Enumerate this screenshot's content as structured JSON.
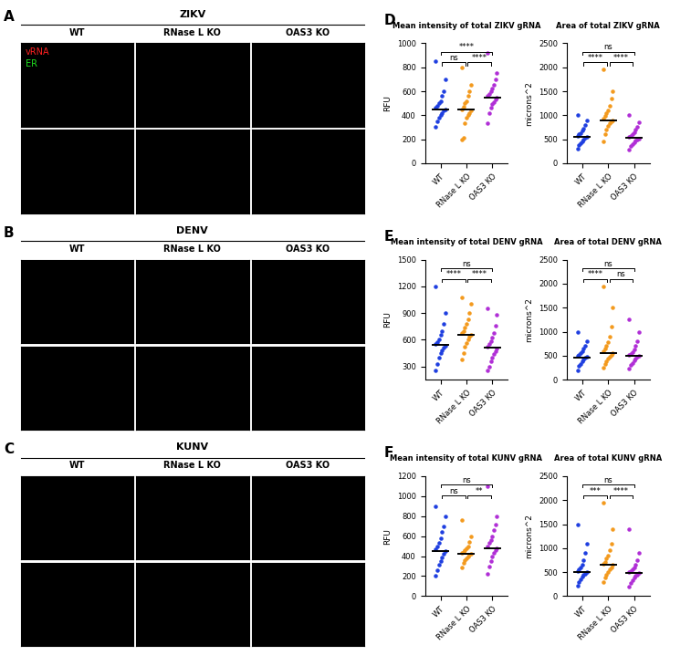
{
  "image_panels": [
    {
      "letter": "A",
      "title": "ZIKV",
      "columns": [
        "WT",
        "RNase L KO",
        "OAS3 KO"
      ],
      "channels": [
        {
          "name": "vRNA",
          "color": "#ff2020"
        },
        {
          "name": "ER",
          "color": "#20e020"
        }
      ]
    },
    {
      "letter": "B",
      "title": "DENV",
      "columns": [
        "WT",
        "RNase L KO",
        "OAS3 KO"
      ]
    },
    {
      "letter": "C",
      "title": "KUNV",
      "columns": [
        "WT",
        "RNase L KO",
        "OAS3 KO"
      ]
    }
  ],
  "chart_data": [
    {
      "type": "scatter",
      "letter": "D",
      "title": "Mean intensity of total ZIKV gRNA",
      "y_label": "RFU",
      "categories": [
        "WT",
        "RNase L KO",
        "OAS3 KO"
      ],
      "colors": [
        "#1f3fe0",
        "#f39a1e",
        "#b02fd6"
      ],
      "values": [
        [
          300,
          350,
          380,
          400,
          420,
          440,
          450,
          460,
          480,
          500,
          520,
          560,
          600,
          700,
          850
        ],
        [
          200,
          210,
          330,
          380,
          400,
          420,
          440,
          450,
          470,
          500,
          520,
          560,
          600,
          650,
          800
        ],
        [
          330,
          420,
          460,
          490,
          510,
          530,
          550,
          560,
          580,
          600,
          620,
          650,
          700,
          750,
          920
        ]
      ],
      "means": [
        450,
        450,
        550
      ],
      "ylim": [
        0,
        1000
      ],
      "yticks": [
        0,
        200,
        400,
        600,
        800,
        1000
      ],
      "comparisons": [
        {
          "pair": [
            0,
            1
          ],
          "label": "ns"
        },
        {
          "pair": [
            1,
            2
          ],
          "label": "****"
        },
        {
          "pair": [
            0,
            2
          ],
          "label": "****"
        }
      ]
    },
    {
      "type": "scatter",
      "title": "Area of total ZIKV gRNA",
      "y_label": "microns^2",
      "categories": [
        "WT",
        "RNase L KO",
        "OAS3 KO"
      ],
      "colors": [
        "#1f3fe0",
        "#f39a1e",
        "#b02fd6"
      ],
      "values": [
        [
          300,
          380,
          420,
          460,
          500,
          530,
          550,
          570,
          600,
          630,
          680,
          720,
          800,
          900,
          1000
        ],
        [
          450,
          600,
          700,
          780,
          830,
          870,
          900,
          930,
          980,
          1050,
          1100,
          1200,
          1350,
          1500,
          1950
        ],
        [
          280,
          350,
          400,
          440,
          480,
          500,
          520,
          540,
          570,
          600,
          640,
          700,
          760,
          850,
          1000
        ]
      ],
      "means": [
        550,
        900,
        530
      ],
      "ylim": [
        0,
        2500
      ],
      "yticks": [
        0,
        500,
        1000,
        1500,
        2000,
        2500
      ],
      "comparisons": [
        {
          "pair": [
            0,
            1
          ],
          "label": "****"
        },
        {
          "pair": [
            1,
            2
          ],
          "label": "****"
        },
        {
          "pair": [
            0,
            2
          ],
          "label": "ns"
        }
      ]
    },
    {
      "type": "scatter",
      "letter": "E",
      "title": "Mean intensity of total DENV gRNA",
      "y_label": "RFU",
      "categories": [
        "WT",
        "RNase L KO",
        "OAS3 KO"
      ],
      "colors": [
        "#1f3fe0",
        "#f39a1e",
        "#b02fd6"
      ],
      "values": [
        [
          250,
          330,
          400,
          450,
          480,
          510,
          530,
          550,
          570,
          600,
          650,
          700,
          780,
          900,
          1200
        ],
        [
          380,
          450,
          520,
          560,
          600,
          630,
          650,
          670,
          700,
          740,
          780,
          830,
          900,
          1000,
          1080
        ],
        [
          250,
          300,
          360,
          400,
          440,
          470,
          500,
          520,
          550,
          580,
          620,
          680,
          760,
          880,
          950
        ]
      ],
      "means": [
        540,
        650,
        510
      ],
      "ylim": [
        150,
        1500
      ],
      "yticks": [
        300,
        600,
        900,
        1200,
        1500
      ],
      "comparisons": [
        {
          "pair": [
            0,
            1
          ],
          "label": "****"
        },
        {
          "pair": [
            1,
            2
          ],
          "label": "****"
        },
        {
          "pair": [
            0,
            2
          ],
          "label": "ns"
        }
      ]
    },
    {
      "type": "scatter",
      "title": "Area of total DENV gRNA",
      "y_label": "microns^2",
      "categories": [
        "WT",
        "RNase L KO",
        "OAS3 KO"
      ],
      "colors": [
        "#1f3fe0",
        "#f39a1e",
        "#b02fd6"
      ],
      "values": [
        [
          200,
          280,
          330,
          380,
          420,
          450,
          470,
          490,
          520,
          560,
          600,
          650,
          700,
          800,
          1000
        ],
        [
          250,
          320,
          380,
          430,
          480,
          520,
          560,
          600,
          650,
          700,
          780,
          900,
          1100,
          1500,
          1950
        ],
        [
          230,
          300,
          350,
          400,
          440,
          470,
          490,
          510,
          540,
          580,
          630,
          700,
          800,
          1000,
          1250
        ]
      ],
      "means": [
        450,
        560,
        490
      ],
      "ylim": [
        0,
        2500
      ],
      "yticks": [
        0,
        500,
        1000,
        1500,
        2000,
        2500
      ],
      "comparisons": [
        {
          "pair": [
            0,
            1
          ],
          "label": "****"
        },
        {
          "pair": [
            1,
            2
          ],
          "label": "ns"
        },
        {
          "pair": [
            0,
            2
          ],
          "label": "ns"
        }
      ]
    },
    {
      "type": "scatter",
      "letter": "F",
      "title": "Mean intensity of total KUNV gRNA",
      "y_label": "RFU",
      "categories": [
        "WT",
        "RNase L KO",
        "OAS3 KO"
      ],
      "colors": [
        "#1f3fe0",
        "#f39a1e",
        "#b02fd6"
      ],
      "values": [
        [
          200,
          260,
          310,
          350,
          390,
          420,
          450,
          470,
          500,
          530,
          580,
          640,
          700,
          800,
          900
        ],
        [
          290,
          330,
          360,
          380,
          400,
          410,
          420,
          430,
          440,
          460,
          480,
          500,
          540,
          600,
          760
        ],
        [
          220,
          300,
          350,
          400,
          430,
          460,
          480,
          500,
          530,
          560,
          600,
          660,
          720,
          800,
          1100
        ]
      ],
      "means": [
        450,
        420,
        480
      ],
      "ylim": [
        0,
        1200
      ],
      "yticks": [
        0,
        200,
        400,
        600,
        800,
        1000,
        1200
      ],
      "comparisons": [
        {
          "pair": [
            0,
            1
          ],
          "label": "ns"
        },
        {
          "pair": [
            1,
            2
          ],
          "label": "**"
        },
        {
          "pair": [
            0,
            2
          ],
          "label": "ns"
        }
      ]
    },
    {
      "type": "scatter",
      "title": "Area of total KUNV gRNA",
      "y_label": "microns^2",
      "categories": [
        "WT",
        "RNase L KO",
        "OAS3 KO"
      ],
      "colors": [
        "#1f3fe0",
        "#f39a1e",
        "#b02fd6"
      ],
      "values": [
        [
          220,
          300,
          350,
          400,
          440,
          470,
          500,
          520,
          550,
          600,
          650,
          750,
          900,
          1100,
          1500
        ],
        [
          300,
          380,
          450,
          500,
          550,
          600,
          650,
          680,
          720,
          780,
          850,
          950,
          1100,
          1400,
          1950
        ],
        [
          200,
          280,
          330,
          380,
          420,
          450,
          480,
          500,
          520,
          560,
          600,
          650,
          750,
          900,
          1400
        ]
      ],
      "means": [
        500,
        650,
        480
      ],
      "ylim": [
        0,
        2500
      ],
      "yticks": [
        0,
        500,
        1000,
        1500,
        2000,
        2500
      ],
      "comparisons": [
        {
          "pair": [
            0,
            1
          ],
          "label": "***"
        },
        {
          "pair": [
            1,
            2
          ],
          "label": "****"
        },
        {
          "pair": [
            0,
            2
          ],
          "label": "ns"
        }
      ]
    }
  ]
}
